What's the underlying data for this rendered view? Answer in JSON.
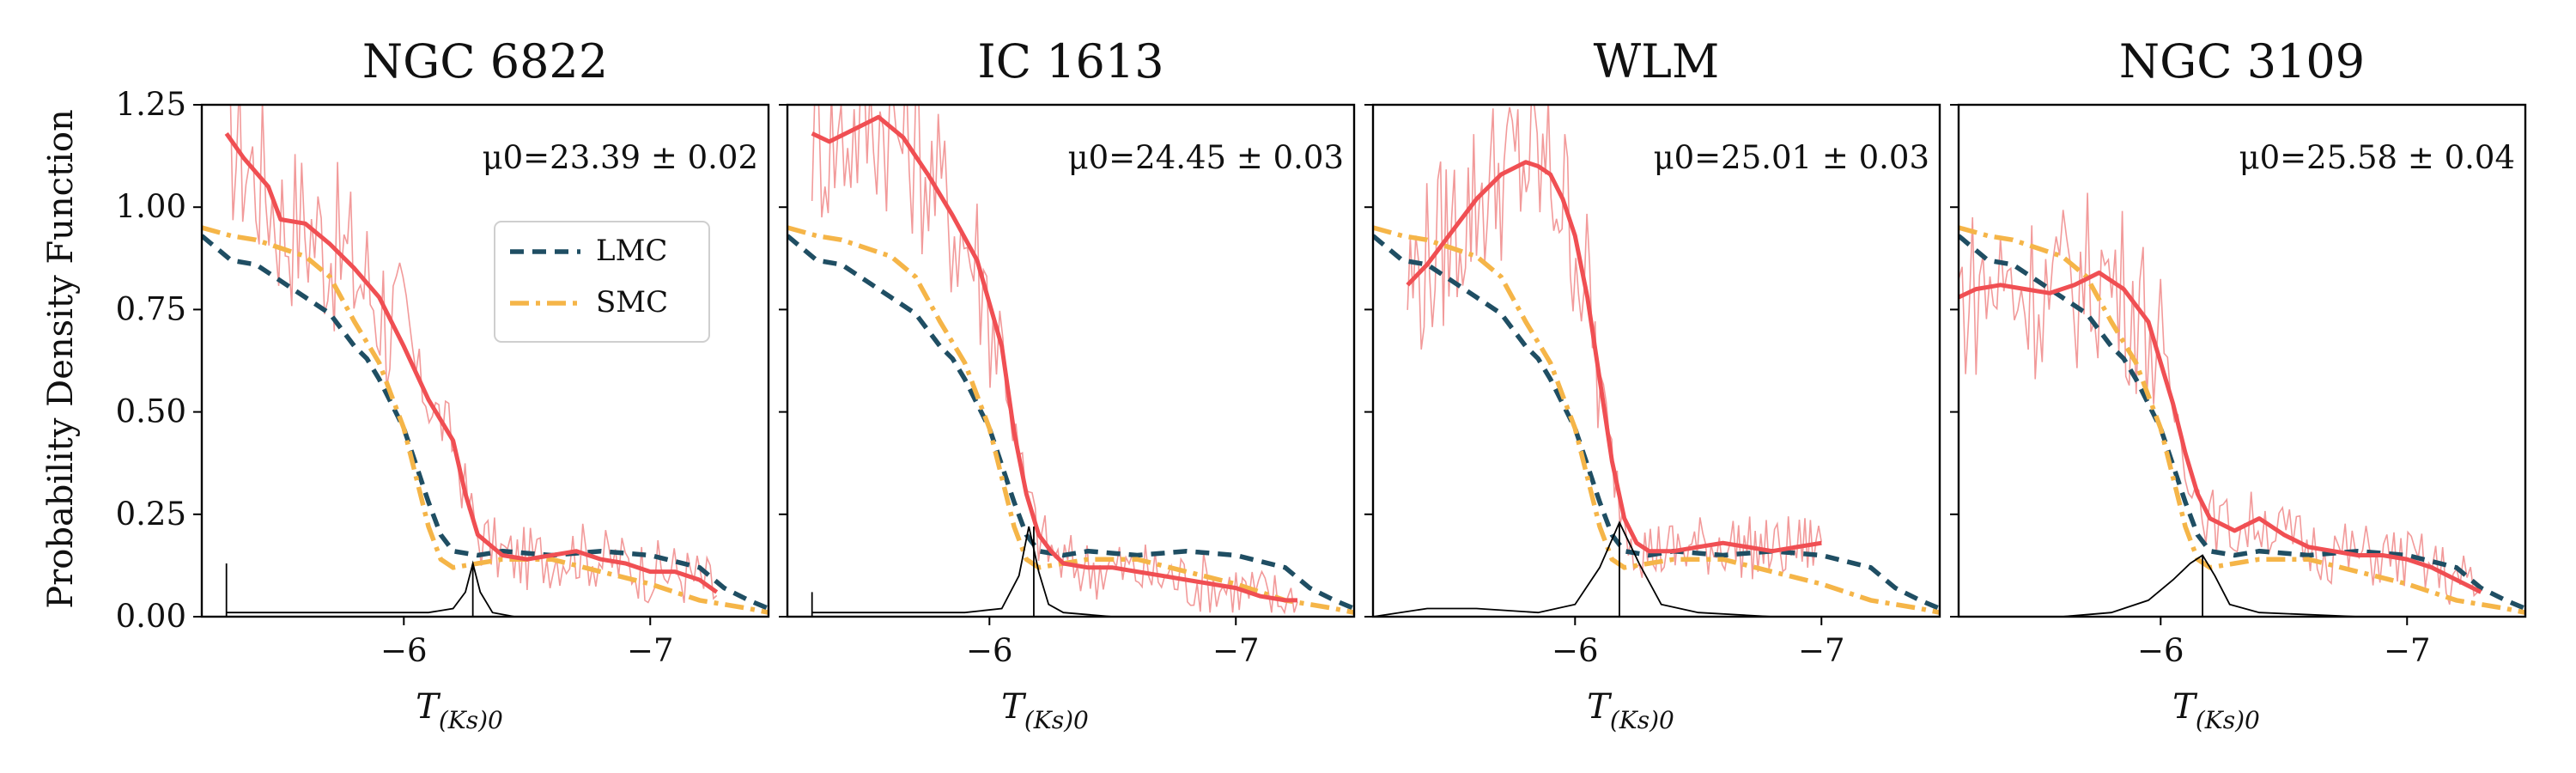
{
  "figure": {
    "ylabel": "Probability Density Function",
    "xlabel_main": "T",
    "xlabel_sub": "(Ks)0",
    "legend": {
      "entries": [
        {
          "name": "LMC",
          "color": "#1f4e63",
          "style": "dashed"
        },
        {
          "name": "SMC",
          "color": "#f5b548",
          "style": "dashdot"
        }
      ],
      "placement": "center-right of first panel"
    },
    "x_ticks": [
      -6,
      -7
    ],
    "y_ticks": [
      "0.00",
      "0.25",
      "0.50",
      "0.75",
      "1.00",
      "1.25"
    ],
    "colors": {
      "kde": "#f04f53",
      "raw": "#f29a9a",
      "lmc": "#1f4e63",
      "smc": "#f5b548",
      "peak": "#000000"
    }
  },
  "chart_data": [
    {
      "type": "line",
      "title": "NGC 6822",
      "annotation": "μ0=23.39 ± 0.02",
      "xlabel": "T_(Ks)0",
      "ylabel": "Probability Density Function",
      "xlim": [
        -5.18,
        -7.48
      ],
      "ylim": [
        0,
        1.25
      ],
      "series": [
        {
          "name": "LMC",
          "x": [
            -5.18,
            -5.3,
            -5.4,
            -5.5,
            -5.6,
            -5.7,
            -5.8,
            -5.85,
            -5.9,
            -5.95,
            -6.0,
            -6.05,
            -6.1,
            -6.15,
            -6.2,
            -6.3,
            -6.4,
            -6.6,
            -6.8,
            -7.0,
            -7.2,
            -7.3,
            -7.4,
            -7.48
          ],
          "y": [
            0.93,
            0.87,
            0.86,
            0.82,
            0.78,
            0.74,
            0.66,
            0.63,
            0.58,
            0.52,
            0.46,
            0.37,
            0.28,
            0.2,
            0.16,
            0.15,
            0.16,
            0.15,
            0.16,
            0.15,
            0.12,
            0.07,
            0.04,
            0.02
          ]
        },
        {
          "name": "SMC",
          "x": [
            -5.18,
            -5.3,
            -5.4,
            -5.5,
            -5.6,
            -5.7,
            -5.8,
            -5.9,
            -6.0,
            -6.05,
            -6.1,
            -6.15,
            -6.2,
            -6.3,
            -6.4,
            -6.6,
            -6.8,
            -7.0,
            -7.2,
            -7.3,
            -7.4,
            -7.48
          ],
          "y": [
            0.95,
            0.93,
            0.92,
            0.9,
            0.88,
            0.83,
            0.72,
            0.62,
            0.46,
            0.34,
            0.22,
            0.14,
            0.12,
            0.13,
            0.14,
            0.14,
            0.11,
            0.08,
            0.04,
            0.03,
            0.02,
            0.01
          ]
        },
        {
          "name": "KDE",
          "x": [
            -5.28,
            -5.35,
            -5.45,
            -5.5,
            -5.6,
            -5.7,
            -5.8,
            -5.9,
            -6.0,
            -6.1,
            -6.2,
            -6.25,
            -6.3,
            -6.4,
            -6.5,
            -6.6,
            -6.7,
            -6.8,
            -6.9,
            -7.0,
            -7.1,
            -7.2,
            -7.27
          ],
          "y": [
            1.18,
            1.12,
            1.05,
            0.97,
            0.96,
            0.91,
            0.85,
            0.78,
            0.66,
            0.53,
            0.43,
            0.3,
            0.2,
            0.15,
            0.14,
            0.15,
            0.16,
            0.14,
            0.13,
            0.11,
            0.11,
            0.09,
            0.06
          ]
        },
        {
          "name": "peak",
          "x": [
            -5.28,
            -5.5,
            -5.7,
            -5.9,
            -6.1,
            -6.2,
            -6.25,
            -6.28,
            -6.31,
            -6.36,
            -6.45,
            -6.8,
            -7.2,
            -7.27
          ],
          "y": [
            0.01,
            0.01,
            0.01,
            0.01,
            0.01,
            0.02,
            0.06,
            0.13,
            0.06,
            0.01,
            0.0,
            0.0,
            0.0,
            0.0
          ]
        }
      ],
      "peak_marker_x": -6.28,
      "leftmost_spike": {
        "x": -5.28,
        "y": 0.13
      }
    },
    {
      "type": "line",
      "title": "IC 1613",
      "annotation": "μ0=24.45 ± 0.03",
      "xlabel": "T_(Ks)0",
      "ylabel": "Probability Density Function",
      "xlim": [
        -5.18,
        -7.48
      ],
      "ylim": [
        0,
        1.25
      ],
      "series": [
        {
          "name": "LMC",
          "x": [
            -5.18,
            -5.3,
            -5.4,
            -5.5,
            -5.6,
            -5.7,
            -5.8,
            -5.85,
            -5.9,
            -5.95,
            -6.0,
            -6.05,
            -6.1,
            -6.15,
            -6.2,
            -6.3,
            -6.4,
            -6.6,
            -6.8,
            -7.0,
            -7.2,
            -7.3,
            -7.4,
            -7.48
          ],
          "y": [
            0.93,
            0.87,
            0.86,
            0.82,
            0.78,
            0.74,
            0.66,
            0.63,
            0.58,
            0.52,
            0.46,
            0.37,
            0.28,
            0.2,
            0.16,
            0.15,
            0.16,
            0.15,
            0.16,
            0.15,
            0.12,
            0.07,
            0.04,
            0.02
          ]
        },
        {
          "name": "SMC",
          "x": [
            -5.18,
            -5.3,
            -5.4,
            -5.5,
            -5.6,
            -5.7,
            -5.8,
            -5.9,
            -6.0,
            -6.05,
            -6.1,
            -6.15,
            -6.2,
            -6.3,
            -6.4,
            -6.6,
            -6.8,
            -7.0,
            -7.2,
            -7.3,
            -7.4,
            -7.48
          ],
          "y": [
            0.95,
            0.93,
            0.92,
            0.9,
            0.88,
            0.83,
            0.72,
            0.62,
            0.46,
            0.34,
            0.22,
            0.14,
            0.12,
            0.13,
            0.14,
            0.14,
            0.11,
            0.08,
            0.04,
            0.03,
            0.02,
            0.01
          ]
        },
        {
          "name": "KDE",
          "x": [
            -5.28,
            -5.35,
            -5.45,
            -5.55,
            -5.65,
            -5.75,
            -5.85,
            -5.95,
            -6.05,
            -6.1,
            -6.15,
            -6.2,
            -6.25,
            -6.3,
            -6.4,
            -6.5,
            -6.6,
            -6.7,
            -6.8,
            -6.9,
            -7.0,
            -7.1,
            -7.2,
            -7.25
          ],
          "y": [
            1.18,
            1.16,
            1.19,
            1.22,
            1.17,
            1.08,
            0.98,
            0.87,
            0.66,
            0.45,
            0.3,
            0.2,
            0.16,
            0.13,
            0.12,
            0.12,
            0.11,
            0.1,
            0.09,
            0.08,
            0.07,
            0.05,
            0.04,
            0.04
          ]
        },
        {
          "name": "peak",
          "x": [
            -5.28,
            -5.6,
            -5.9,
            -6.05,
            -6.12,
            -6.16,
            -6.2,
            -6.24,
            -6.3,
            -6.5,
            -6.8,
            -7.25
          ],
          "y": [
            0.01,
            0.01,
            0.01,
            0.02,
            0.1,
            0.22,
            0.11,
            0.03,
            0.01,
            0.0,
            0.0,
            0.0
          ]
        }
      ],
      "peak_marker_x": -6.18,
      "leftmost_spike": {
        "x": -5.28,
        "y": 0.06
      }
    },
    {
      "type": "line",
      "title": "WLM",
      "annotation": "μ0=25.01 ± 0.03",
      "xlabel": "T_(Ks)0",
      "ylabel": "Probability Density Function",
      "xlim": [
        -5.18,
        -7.48
      ],
      "ylim": [
        0,
        1.25
      ],
      "series": [
        {
          "name": "LMC",
          "x": [
            -5.18,
            -5.3,
            -5.4,
            -5.5,
            -5.6,
            -5.7,
            -5.8,
            -5.85,
            -5.9,
            -5.95,
            -6.0,
            -6.05,
            -6.1,
            -6.15,
            -6.2,
            -6.3,
            -6.4,
            -6.6,
            -6.8,
            -7.0,
            -7.2,
            -7.3,
            -7.4,
            -7.48
          ],
          "y": [
            0.93,
            0.87,
            0.86,
            0.82,
            0.78,
            0.74,
            0.66,
            0.63,
            0.58,
            0.52,
            0.46,
            0.37,
            0.28,
            0.2,
            0.16,
            0.15,
            0.16,
            0.15,
            0.16,
            0.15,
            0.12,
            0.07,
            0.04,
            0.02
          ]
        },
        {
          "name": "SMC",
          "x": [
            -5.18,
            -5.3,
            -5.4,
            -5.5,
            -5.6,
            -5.7,
            -5.8,
            -5.9,
            -6.0,
            -6.05,
            -6.1,
            -6.15,
            -6.2,
            -6.3,
            -6.4,
            -6.6,
            -6.8,
            -7.0,
            -7.2,
            -7.3,
            -7.4,
            -7.48
          ],
          "y": [
            0.95,
            0.93,
            0.92,
            0.9,
            0.88,
            0.83,
            0.72,
            0.62,
            0.46,
            0.34,
            0.22,
            0.14,
            0.12,
            0.13,
            0.14,
            0.14,
            0.11,
            0.08,
            0.04,
            0.03,
            0.02,
            0.01
          ]
        },
        {
          "name": "KDE",
          "x": [
            -5.32,
            -5.4,
            -5.5,
            -5.6,
            -5.7,
            -5.8,
            -5.85,
            -5.9,
            -5.95,
            -6.0,
            -6.05,
            -6.1,
            -6.15,
            -6.2,
            -6.25,
            -6.3,
            -6.4,
            -6.5,
            -6.6,
            -6.7,
            -6.8,
            -6.9,
            -7.0
          ],
          "y": [
            0.81,
            0.86,
            0.94,
            1.02,
            1.08,
            1.11,
            1.1,
            1.08,
            1.02,
            0.93,
            0.78,
            0.58,
            0.38,
            0.24,
            0.18,
            0.16,
            0.16,
            0.17,
            0.18,
            0.17,
            0.16,
            0.17,
            0.18
          ]
        },
        {
          "name": "peak",
          "x": [
            -5.18,
            -5.4,
            -5.6,
            -5.85,
            -6.0,
            -6.1,
            -6.18,
            -6.26,
            -6.35,
            -6.5,
            -6.8,
            -7.0
          ],
          "y": [
            0.0,
            0.02,
            0.02,
            0.01,
            0.03,
            0.12,
            0.23,
            0.13,
            0.03,
            0.01,
            0.0,
            0.0
          ]
        }
      ],
      "peak_marker_x": -6.18
    },
    {
      "type": "line",
      "title": "NGC 3109",
      "annotation": "μ0=25.58 ± 0.04",
      "xlabel": "T_(Ks)0",
      "ylabel": "Probability Density Function",
      "xlim": [
        -5.18,
        -7.48
      ],
      "ylim": [
        0,
        1.25
      ],
      "series": [
        {
          "name": "LMC",
          "x": [
            -5.18,
            -5.3,
            -5.4,
            -5.5,
            -5.6,
            -5.7,
            -5.8,
            -5.85,
            -5.9,
            -5.95,
            -6.0,
            -6.05,
            -6.1,
            -6.15,
            -6.2,
            -6.3,
            -6.4,
            -6.6,
            -6.8,
            -7.0,
            -7.2,
            -7.3,
            -7.4,
            -7.48
          ],
          "y": [
            0.93,
            0.87,
            0.86,
            0.82,
            0.78,
            0.74,
            0.66,
            0.63,
            0.58,
            0.52,
            0.46,
            0.37,
            0.28,
            0.2,
            0.16,
            0.15,
            0.16,
            0.15,
            0.16,
            0.15,
            0.12,
            0.07,
            0.04,
            0.02
          ]
        },
        {
          "name": "SMC",
          "x": [
            -5.18,
            -5.3,
            -5.4,
            -5.5,
            -5.6,
            -5.7,
            -5.8,
            -5.9,
            -6.0,
            -6.05,
            -6.1,
            -6.15,
            -6.2,
            -6.3,
            -6.4,
            -6.6,
            -6.8,
            -7.0,
            -7.2,
            -7.3,
            -7.4,
            -7.48
          ],
          "y": [
            0.95,
            0.93,
            0.92,
            0.9,
            0.88,
            0.83,
            0.72,
            0.62,
            0.46,
            0.34,
            0.22,
            0.14,
            0.12,
            0.13,
            0.14,
            0.14,
            0.11,
            0.08,
            0.04,
            0.03,
            0.02,
            0.01
          ]
        },
        {
          "name": "KDE",
          "x": [
            -5.18,
            -5.25,
            -5.35,
            -5.45,
            -5.55,
            -5.65,
            -5.75,
            -5.85,
            -5.95,
            -6.05,
            -6.1,
            -6.15,
            -6.2,
            -6.3,
            -6.4,
            -6.5,
            -6.6,
            -6.7,
            -6.8,
            -6.9,
            -7.0,
            -7.1,
            -7.2,
            -7.3
          ],
          "y": [
            0.78,
            0.8,
            0.81,
            0.8,
            0.79,
            0.81,
            0.84,
            0.8,
            0.72,
            0.52,
            0.4,
            0.3,
            0.24,
            0.21,
            0.24,
            0.2,
            0.17,
            0.16,
            0.15,
            0.15,
            0.14,
            0.12,
            0.09,
            0.06
          ]
        },
        {
          "name": "peak",
          "x": [
            -5.18,
            -5.6,
            -5.8,
            -5.95,
            -6.05,
            -6.12,
            -6.17,
            -6.22,
            -6.28,
            -6.4,
            -6.8,
            -7.3
          ],
          "y": [
            0.0,
            0.0,
            0.01,
            0.04,
            0.09,
            0.13,
            0.15,
            0.1,
            0.03,
            0.01,
            0.0,
            0.0
          ]
        }
      ],
      "peak_marker_x": -6.17
    }
  ]
}
